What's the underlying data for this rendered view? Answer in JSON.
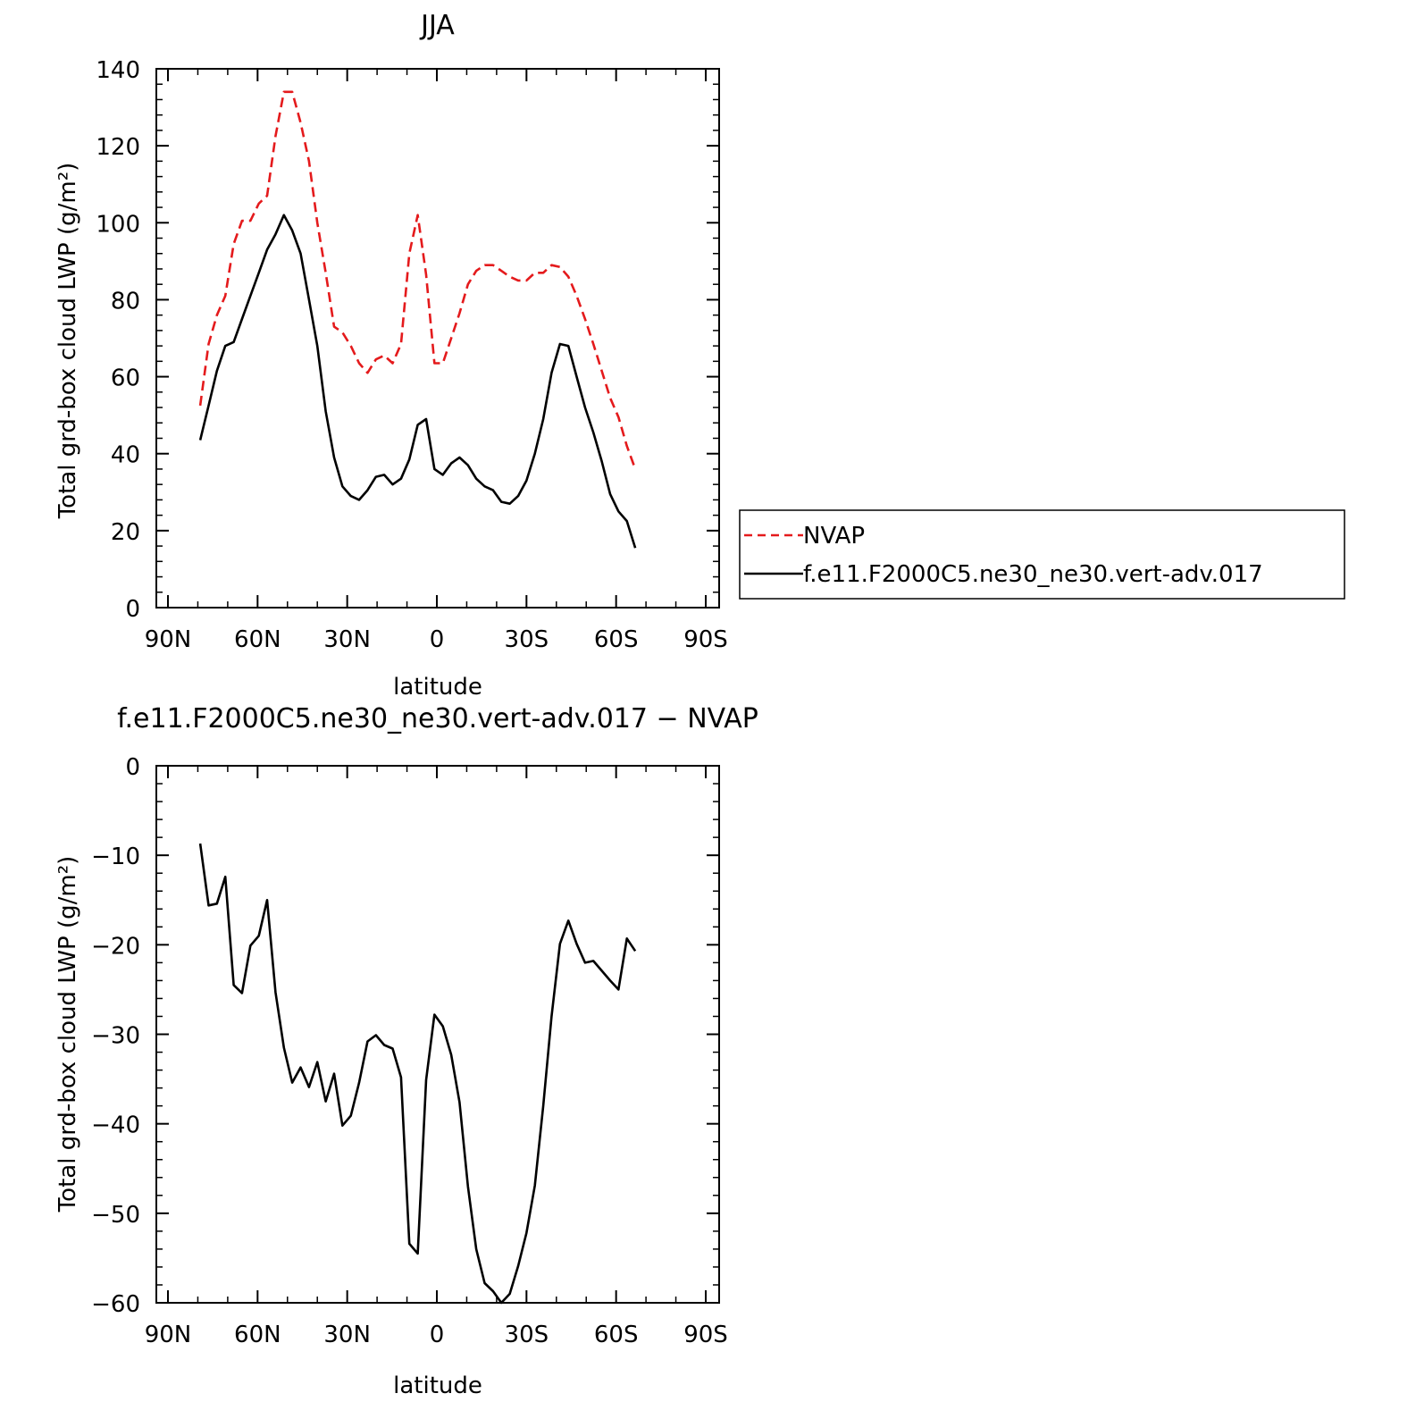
{
  "chart_data": [
    {
      "type": "line",
      "title": "JJA",
      "xlabel": "latitude",
      "ylabel": "Total grd-box cloud LWP (g/m²)",
      "xlim": [
        90,
        -90
      ],
      "ylim": [
        0,
        140
      ],
      "x_ticks": [
        90,
        60,
        30,
        0,
        -30,
        -60,
        -90
      ],
      "x_tick_labels": [
        "90N",
        "60N",
        "30N",
        "0",
        "30S",
        "60S",
        "90S"
      ],
      "y_ticks": [
        0,
        20,
        40,
        60,
        80,
        100,
        120,
        140
      ],
      "y_tick_labels": [
        "0",
        "20",
        "40",
        "60",
        "80",
        "100",
        "120",
        "140"
      ],
      "grid": false,
      "legend": {
        "placement": "right, outside plot",
        "entries": [
          "NVAP",
          "f.e11.F2000C5.ne30_ne30.vert-adv.017"
        ]
      },
      "x": [
        79.2,
        76.4,
        73.6,
        70.8,
        68.0,
        65.2,
        62.4,
        59.6,
        56.8,
        54.0,
        51.2,
        48.4,
        45.6,
        42.8,
        40.0,
        37.2,
        34.4,
        31.6,
        28.8,
        26.0,
        23.2,
        20.4,
        17.6,
        14.8,
        12.0,
        9.2,
        6.4,
        3.6,
        0.8,
        -2.0,
        -4.8,
        -7.6,
        -10.4,
        -13.2,
        -16.0,
        -18.8,
        -21.6,
        -24.4,
        -27.2,
        -30.0,
        -32.8,
        -35.6,
        -38.4,
        -41.2,
        -44.0,
        -46.8,
        -49.6,
        -52.4,
        -55.2,
        -58.0,
        -60.8,
        -63.6,
        -66.4
      ],
      "series": [
        {
          "name": "NVAP",
          "color": "#e41a1c",
          "dash": "dashed",
          "values": [
            52.5,
            68.5,
            76.0,
            81.0,
            94.5,
            100.5,
            100.5,
            105.0,
            107.0,
            122.5,
            134.0,
            134.0,
            126.0,
            116.0,
            100.0,
            87.0,
            73.0,
            71.5,
            68.0,
            63.5,
            61.0,
            64.5,
            65.5,
            63.5,
            68.5,
            92.0,
            102.0,
            86.5,
            63.5,
            63.5,
            70.0,
            76.5,
            84.0,
            87.5,
            89.0,
            89.0,
            87.5,
            86.0,
            85.0,
            85.0,
            87.0,
            87.0,
            89.0,
            88.5,
            86.0,
            81.0,
            75.0,
            68.5,
            61.5,
            54.5,
            49.5,
            42.0,
            36.0
          ]
        },
        {
          "name": "f.e11.F2000C5.ne30_ne30.vert-adv.017",
          "color": "#000000",
          "dash": "solid",
          "values": [
            43.5,
            52.5,
            61.5,
            68.0,
            69.0,
            75.0,
            81.0,
            87.0,
            93.0,
            97.0,
            102.0,
            98.0,
            92.0,
            80.0,
            68.0,
            51.0,
            39.0,
            31.5,
            29.0,
            28.0,
            30.5,
            34.0,
            34.5,
            32.0,
            33.5,
            38.5,
            47.5,
            49.0,
            36.0,
            34.5,
            37.5,
            39.0,
            37.0,
            33.5,
            31.5,
            30.5,
            27.5,
            27.0,
            29.0,
            33.0,
            40.0,
            49.0,
            61.0,
            68.5,
            68.0,
            60.0,
            52.0,
            45.5,
            38.0,
            29.5,
            25.0,
            22.5,
            15.5
          ]
        }
      ]
    },
    {
      "type": "line",
      "title": "f.e11.F2000C5.ne30_ne30.vert-adv.017 − NVAP",
      "xlabel": "latitude",
      "ylabel": "Total grd-box cloud LWP (g/m²)",
      "xlim": [
        90,
        -90
      ],
      "ylim": [
        -60,
        0
      ],
      "x_ticks": [
        90,
        60,
        30,
        0,
        -30,
        -60,
        -90
      ],
      "x_tick_labels": [
        "90N",
        "60N",
        "30N",
        "0",
        "30S",
        "60S",
        "90S"
      ],
      "y_ticks": [
        0,
        -10,
        -20,
        -30,
        -40,
        -50,
        -60
      ],
      "y_tick_labels": [
        "0",
        "−10",
        "−20",
        "−30",
        "−40",
        "−50",
        "−60"
      ],
      "grid": false,
      "x": [
        79.2,
        76.4,
        73.6,
        70.8,
        68.0,
        65.2,
        62.4,
        59.6,
        56.8,
        54.0,
        51.2,
        48.4,
        45.6,
        42.8,
        40.0,
        37.2,
        34.4,
        31.6,
        28.8,
        26.0,
        23.2,
        20.4,
        17.6,
        14.8,
        12.0,
        9.2,
        6.4,
        3.6,
        0.8,
        -2.0,
        -4.8,
        -7.6,
        -10.4,
        -13.2,
        -16.0,
        -18.8,
        -21.6,
        -24.4,
        -27.2,
        -30.0,
        -32.8,
        -35.6,
        -38.4,
        -41.2,
        -44.0,
        -46.8,
        -49.6,
        -52.4,
        -55.2,
        -58.0,
        -60.8,
        -63.6,
        -66.4
      ],
      "series": [
        {
          "color": "#000000",
          "dash": "solid",
          "values": [
            -8.7,
            -15.6,
            -15.4,
            -12.4,
            -24.5,
            -25.4,
            -20.1,
            -19.0,
            -15.0,
            -25.3,
            -31.5,
            -35.4,
            -33.7,
            -35.9,
            -33.1,
            -37.5,
            -34.4,
            -40.2,
            -39.1,
            -35.4,
            -30.8,
            -30.1,
            -31.2,
            -31.6,
            -34.8,
            -53.4,
            -54.5,
            -35.1,
            -27.8,
            -29.1,
            -32.3,
            -37.6,
            -47.0,
            -54.0,
            -57.8,
            -58.7,
            -60.0,
            -59.0,
            -55.9,
            -52.2,
            -46.9,
            -38.0,
            -28.0,
            -19.9,
            -17.3,
            -19.9,
            -22.0,
            -21.8,
            -22.9,
            -24.0,
            -25.0,
            -19.3,
            -20.7
          ]
        }
      ]
    }
  ]
}
